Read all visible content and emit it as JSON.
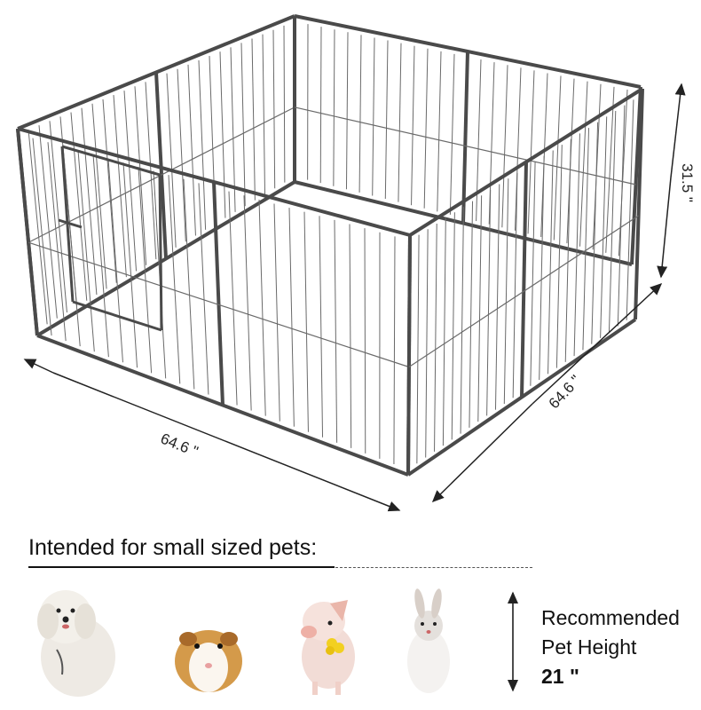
{
  "dimensions": {
    "length": "64.6 \"",
    "width": "64.6 \"",
    "height": "31.5 \""
  },
  "heading": "Intended for small sized pets:",
  "pets": [
    {
      "icon": "dog-image"
    },
    {
      "icon": "guinea-pig-image"
    },
    {
      "icon": "pig-image"
    },
    {
      "icon": "rabbit-image"
    }
  ],
  "recommendation": {
    "line1": "Recommended",
    "line2": "Pet Height",
    "value": "21 \""
  },
  "colors": {
    "frame": "#4a4a4a",
    "wire": "#6a6a6a"
  }
}
